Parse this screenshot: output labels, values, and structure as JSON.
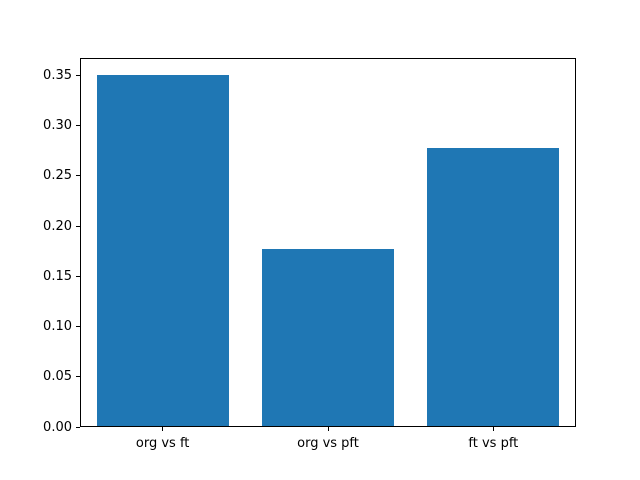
{
  "chart_data": {
    "type": "bar",
    "title": "",
    "xlabel": "",
    "ylabel": "",
    "categories": [
      "org vs ft",
      "org vs pft",
      "ft vs pft"
    ],
    "values": [
      0.35,
      0.176,
      0.277
    ],
    "ylim": [
      0,
      0.3675
    ],
    "yticks": [
      0.0,
      0.05,
      0.1,
      0.15,
      0.2,
      0.25,
      0.3,
      0.35
    ],
    "ytick_labels": [
      "0.00",
      "0.05",
      "0.10",
      "0.15",
      "0.20",
      "0.25",
      "0.30",
      "0.35"
    ],
    "bar_color": "#1f77b4",
    "axis_color": "#000000",
    "background_color": "#ffffff",
    "grid": false,
    "legend": null,
    "bar_width_fraction": 0.8
  }
}
